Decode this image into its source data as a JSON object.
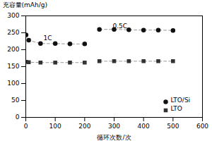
{
  "chart_data": {
    "type": "line",
    "xlabel": "循环次数/次",
    "ylabel": "充容量(mAh/g)",
    "x": [
      1,
      10,
      50,
      100,
      150,
      200,
      null,
      250,
      300,
      350,
      400,
      450,
      500
    ],
    "series": [
      {
        "name": "LTO/Si",
        "color": "#111111",
        "marker": "circle",
        "line_style": "dashed",
        "values": [
          244,
          228,
          218,
          218,
          217,
          217,
          null,
          260,
          260,
          259,
          258,
          258,
          257
        ]
      },
      {
        "name": "LTO",
        "color": "#333333",
        "marker": "square",
        "line_style": "dashed",
        "values": [
          164,
          163,
          162,
          162,
          162,
          162,
          null,
          166,
          166,
          166,
          166,
          166,
          166
        ]
      }
    ],
    "color": "#999999",
    "annotations": [
      {
        "text": "1C",
        "x": 60,
        "y": 234
      },
      {
        "text": "0.5C",
        "x": 295,
        "y": 270
      }
    ],
    "xlim": [
      0,
      600
    ],
    "ylim": [
      0,
      300
    ],
    "xticks": [
      0,
      100,
      200,
      300,
      400,
      500,
      600
    ],
    "yticks": [
      0,
      50,
      100,
      150,
      200,
      250,
      300
    ],
    "grid": false,
    "legend": "lower right"
  }
}
